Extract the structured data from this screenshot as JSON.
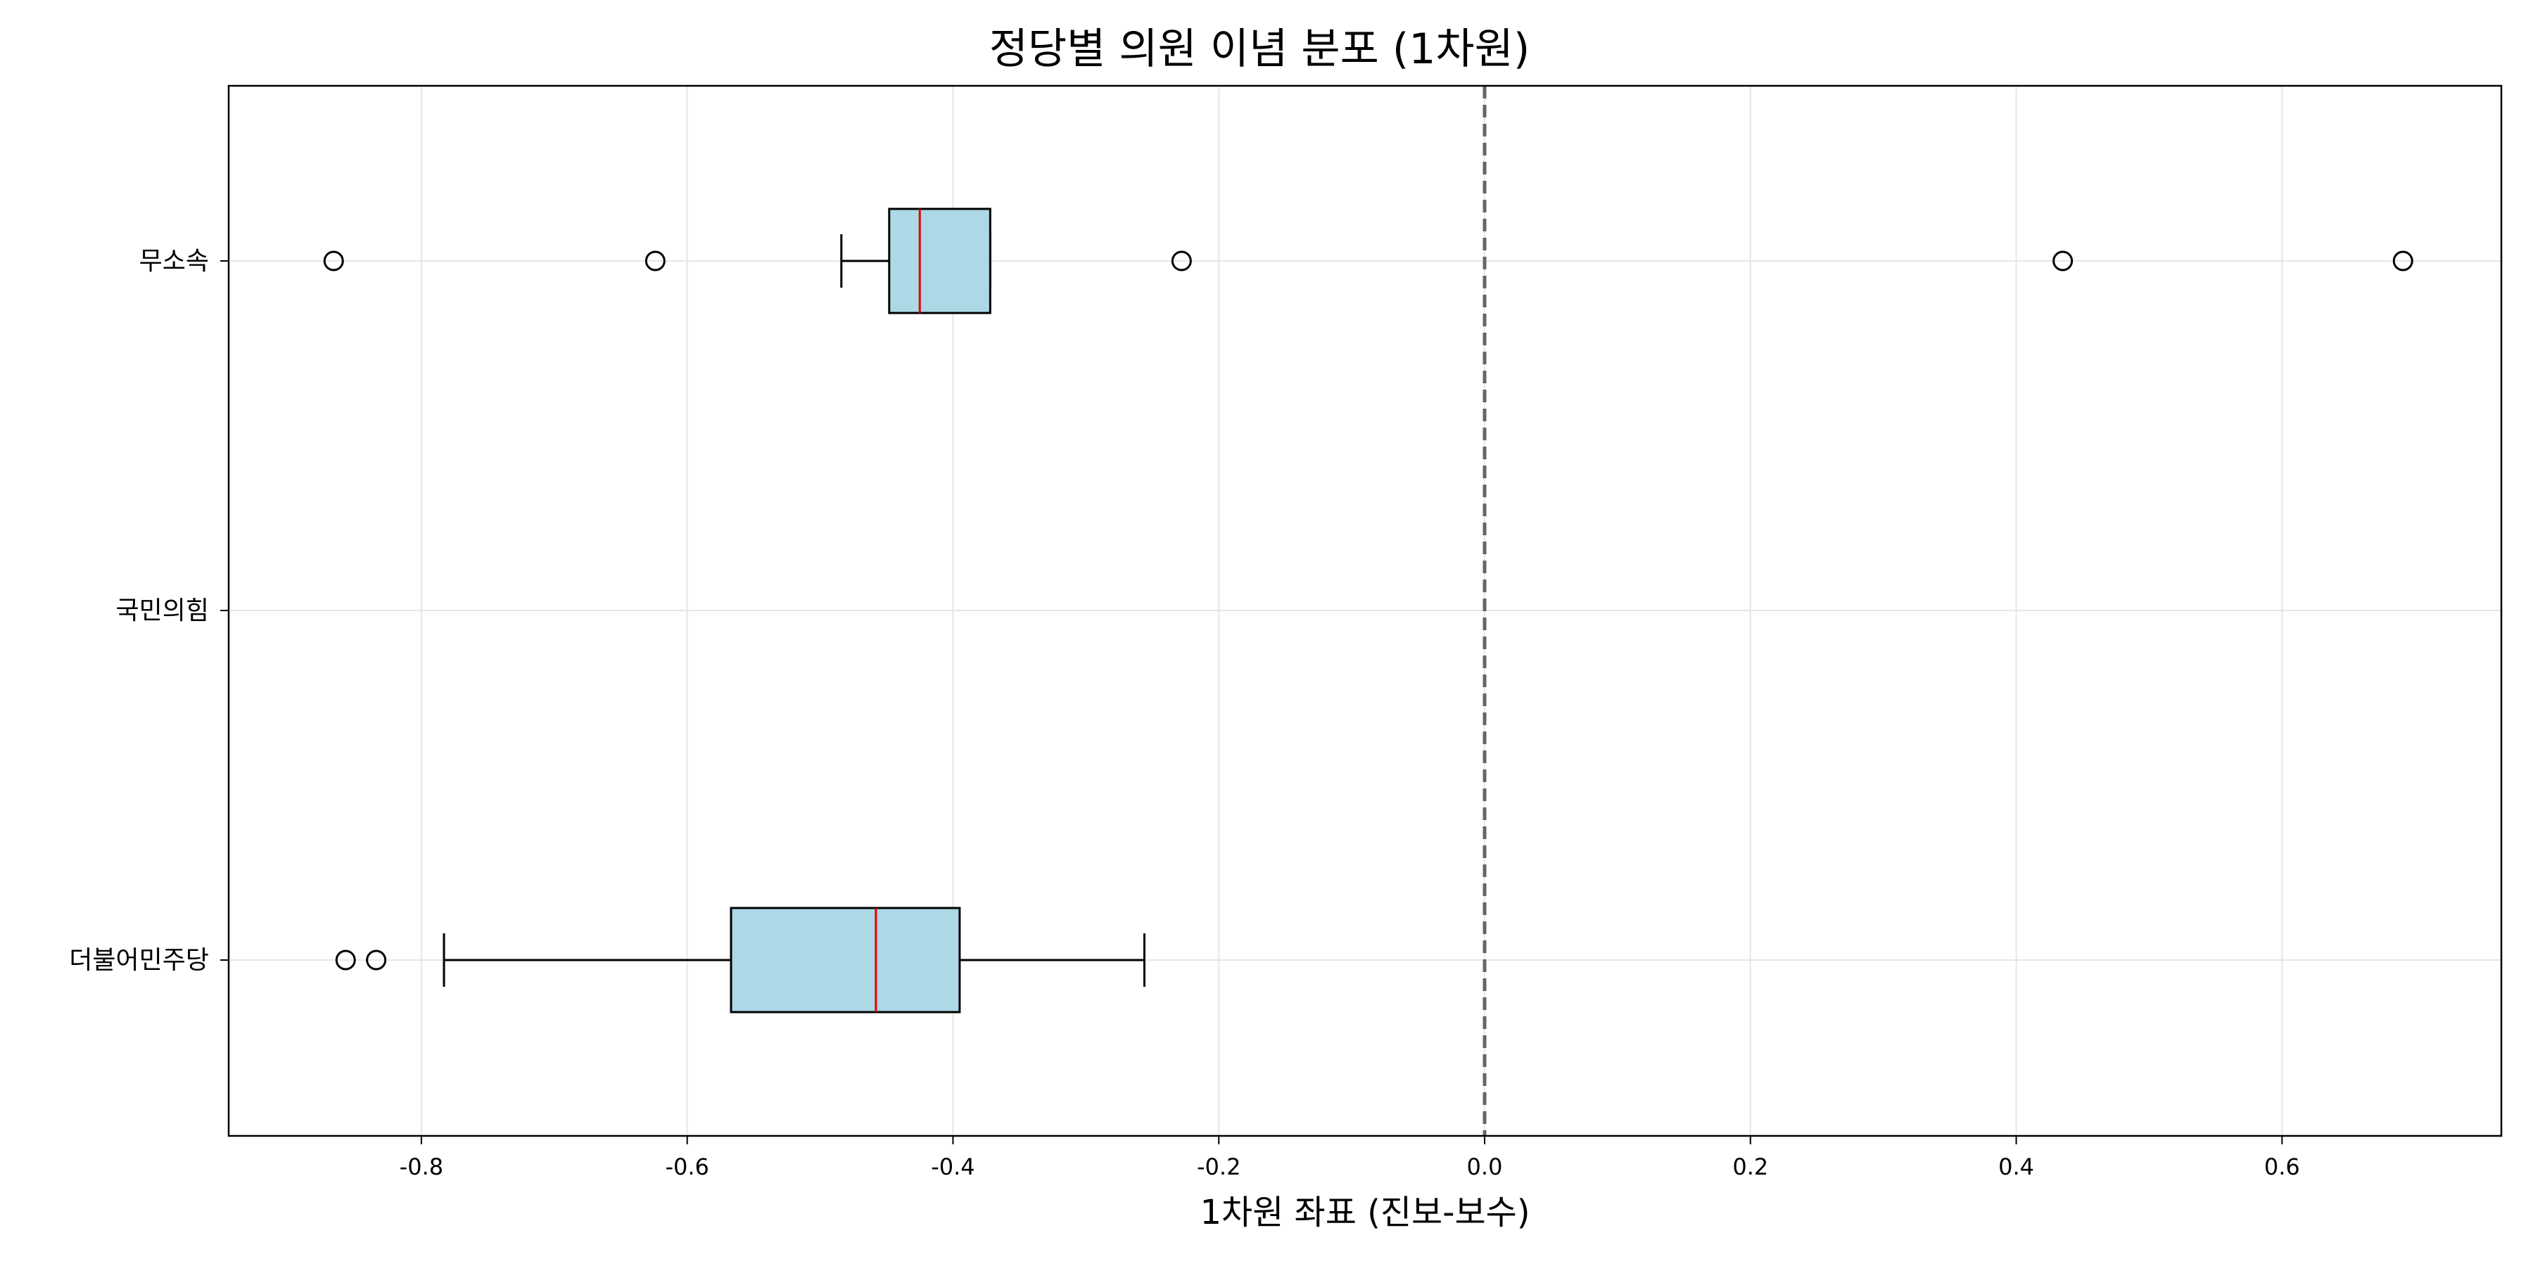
{
  "chart_data": {
    "type": "boxplot",
    "orientation": "horizontal",
    "title": "정당별 의원 이념 분포 (1차원)",
    "xlabel": "1차원 좌표 (진보-보수)",
    "ylabel": "",
    "xlim": [
      -0.945,
      0.765
    ],
    "xticks": [
      -0.8,
      -0.6,
      -0.4,
      -0.2,
      0.0,
      0.2,
      0.4,
      0.6
    ],
    "xtick_labels": [
      "-0.8",
      "-0.6",
      "-0.4",
      "-0.2",
      "0.0",
      "0.2",
      "0.4",
      "0.6"
    ],
    "grid": true,
    "reference_line": {
      "x": 0.0,
      "style": "dashed",
      "color": "#666666"
    },
    "colors": {
      "box_fill": "#add8e6",
      "median": "#e00000",
      "edge": "#000000",
      "grid": "#e6e6e6"
    },
    "categories": [
      "더불어민주당",
      "국민의힘",
      "무소속"
    ],
    "series": [
      {
        "category": "더불어민주당",
        "whisker_low": -0.783,
        "q1": -0.567,
        "median": -0.458,
        "q3": -0.395,
        "whisker_high": -0.256,
        "outliers": [
          -0.857,
          -0.834
        ]
      },
      {
        "category": "국민의힘",
        "empty": true,
        "outliers": []
      },
      {
        "category": "무소속",
        "whisker_low": -0.484,
        "q1": -0.448,
        "median": -0.425,
        "q3": -0.372,
        "whisker_high": -0.372,
        "outliers": [
          -0.866,
          -0.624,
          -0.228,
          0.435,
          0.691
        ]
      }
    ]
  }
}
